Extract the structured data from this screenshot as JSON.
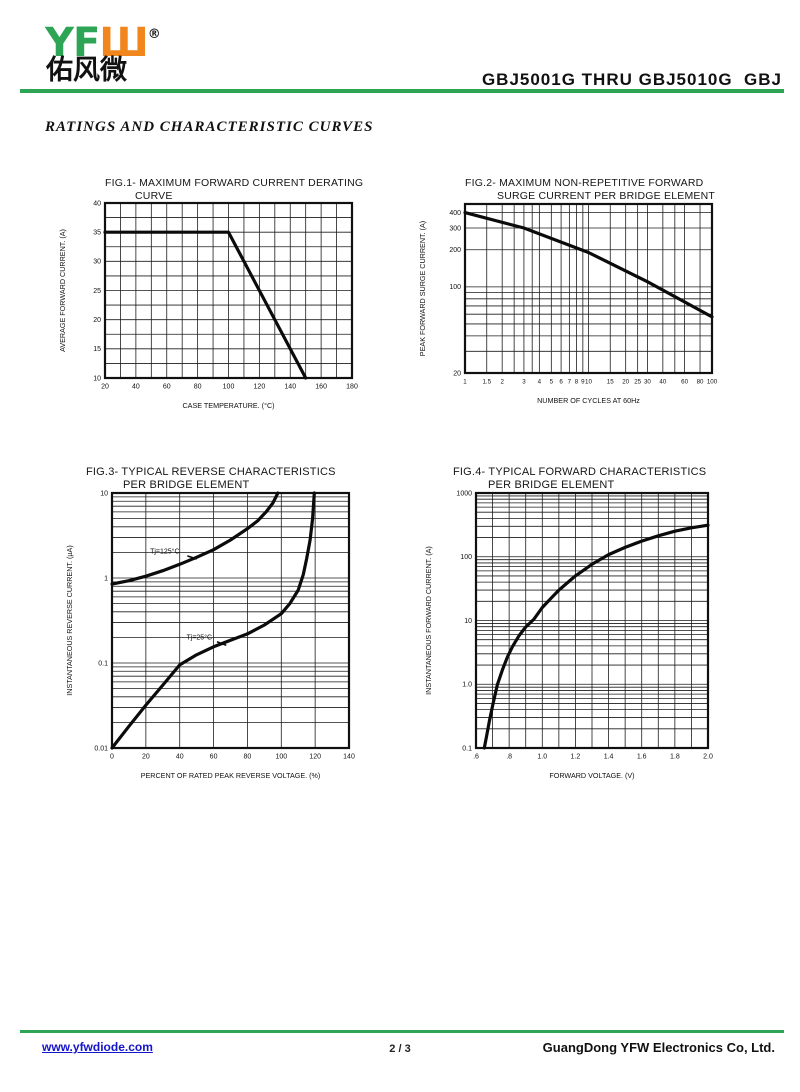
{
  "header": {
    "logo": {
      "yf": "YF",
      "mark": "Ш",
      "registered": "®",
      "chinese": "佑风微"
    },
    "doc_title": "GBJ5001G THRU GBJ5010G  GBJ"
  },
  "section_heading": "RATINGS AND CHARACTERISTIC CURVES",
  "footer": {
    "website": "www.yfwdiode.com",
    "page": "2 / 3",
    "company": "GuangDong YFW Electronics Co, Ltd."
  },
  "colors": {
    "brand_green": "#2ea455",
    "brand_orange": "#f0861c",
    "link_blue": "#1414cc",
    "ink": "#111111"
  },
  "chart_data": [
    {
      "type": "line",
      "title": "FIG.1- MAXIMUM FORWARD CURRENT DERATING",
      "title_line2": "CURVE",
      "xlabel": "CASE TEMPERATURE. (°C)",
      "ylabel": "AVERAGE FORWARD CURRENT. (A)",
      "x": {
        "scale": "linear",
        "min": 20,
        "max": 180,
        "grid": [
          30,
          40,
          50,
          60,
          70,
          80,
          90,
          100,
          110,
          120,
          130,
          140,
          150,
          160,
          170
        ],
        "ticks": [
          {
            "v": 20,
            "l": "20"
          },
          {
            "v": 40,
            "l": "40"
          },
          {
            "v": 60,
            "l": "60"
          },
          {
            "v": 80,
            "l": "80"
          },
          {
            "v": 100,
            "l": "100"
          },
          {
            "v": 120,
            "l": "120"
          },
          {
            "v": 140,
            "l": "140"
          },
          {
            "v": 160,
            "l": "160"
          },
          {
            "v": 180,
            "l": "180"
          }
        ]
      },
      "y": {
        "scale": "linear",
        "min": 10,
        "max": 40,
        "grid": [
          12.5,
          15,
          17.5,
          20,
          22.5,
          25,
          27.5,
          30,
          32.5,
          35,
          37.5
        ],
        "ticks": [
          {
            "v": 40,
            "l": "40"
          },
          {
            "v": 35,
            "l": "35"
          },
          {
            "v": 30,
            "l": "30"
          },
          {
            "v": 25,
            "l": "25"
          },
          {
            "v": 20,
            "l": "20"
          },
          {
            "v": 15,
            "l": "15"
          },
          {
            "v": 10,
            "l": "10"
          }
        ]
      },
      "series": [
        {
          "name": "max-average-forward-current",
          "points": [
            [
              20,
              35
            ],
            [
              100,
              35
            ],
            [
              150,
              10
            ]
          ]
        }
      ],
      "annotations": []
    },
    {
      "type": "line",
      "title": "FIG.2- MAXIMUM NON-REPETITIVE FORWARD",
      "title_line2": "SURGE CURRENT PER BRIDGE ELEMENT",
      "xlabel": "NUMBER OF CYCLES AT 60Hz",
      "ylabel": "PEAK FORWARD SURGE CURRENT. (A)",
      "x": {
        "scale": "log",
        "min": 1,
        "max": 100,
        "tick_fs": 6.2,
        "grid": [
          1.5,
          2,
          2.5,
          3,
          3.5,
          4,
          5,
          6,
          7,
          8,
          9,
          10,
          15,
          20,
          25,
          30,
          40,
          50,
          60,
          80
        ],
        "ticks": [
          {
            "v": 1,
            "l": "1"
          },
          {
            "v": 1.5,
            "l": "1.5"
          },
          {
            "v": 2,
            "l": "2"
          },
          {
            "v": 3,
            "l": "3"
          },
          {
            "v": 4,
            "l": "4"
          },
          {
            "v": 5,
            "l": "5"
          },
          {
            "v": 6,
            "l": "6"
          },
          {
            "v": 7,
            "l": "7"
          },
          {
            "v": 8,
            "l": "8"
          },
          {
            "v": 9,
            "l": "9"
          },
          {
            "v": 10,
            "l": "10"
          },
          {
            "v": 15,
            "l": "15"
          },
          {
            "v": 20,
            "l": "20"
          },
          {
            "v": 25,
            "l": "25"
          },
          {
            "v": 30,
            "l": "30"
          },
          {
            "v": 40,
            "l": "40"
          },
          {
            "v": 60,
            "l": "60"
          },
          {
            "v": 80,
            "l": "80"
          },
          {
            "v": 100,
            "l": "100"
          }
        ]
      },
      "y": {
        "scale": "log",
        "min": 20,
        "max": 470,
        "grid": [
          30,
          40,
          50,
          60,
          70,
          80,
          90,
          100,
          200,
          300,
          400
        ],
        "ticks": [
          {
            "v": 400,
            "l": "400"
          },
          {
            "v": 300,
            "l": "300"
          },
          {
            "v": 200,
            "l": "200"
          },
          {
            "v": 100,
            "l": "100"
          },
          {
            "v": 20,
            "l": "20"
          }
        ]
      },
      "series": [
        {
          "name": "peak-surge-current",
          "points": [
            [
              1,
              400
            ],
            [
              3,
              300
            ],
            [
              10,
              190
            ],
            [
              30,
              110
            ],
            [
              100,
              57
            ]
          ]
        }
      ],
      "annotations": []
    },
    {
      "type": "line",
      "title": "FIG.3- TYPICAL REVERSE CHARACTERISTICS",
      "title_line2": "PER BRIDGE ELEMENT",
      "xlabel": "PERCENT OF RATED PEAK REVERSE VOLTAGE. (%)",
      "ylabel": "INSTANTANEOUS REVERSE CURRENT. (µA)",
      "x": {
        "scale": "linear",
        "min": 0,
        "max": 140,
        "grid": [
          20,
          40,
          60,
          80,
          100,
          120
        ],
        "ticks": [
          {
            "v": 0,
            "l": "0"
          },
          {
            "v": 20,
            "l": "20"
          },
          {
            "v": 40,
            "l": "40"
          },
          {
            "v": 60,
            "l": "60"
          },
          {
            "v": 80,
            "l": "80"
          },
          {
            "v": 100,
            "l": "100"
          },
          {
            "v": 120,
            "l": "120"
          },
          {
            "v": 140,
            "l": "140"
          }
        ]
      },
      "y": {
        "scale": "log",
        "min": 0.01,
        "max": 10,
        "grid": [
          0.02,
          0.03,
          0.04,
          0.05,
          0.06,
          0.07,
          0.08,
          0.09,
          0.1,
          0.2,
          0.3,
          0.4,
          0.5,
          0.6,
          0.7,
          0.8,
          0.9,
          1,
          2,
          3,
          4,
          5,
          6,
          7,
          8,
          9
        ],
        "ticks": [
          {
            "v": 10,
            "l": "10"
          },
          {
            "v": 1,
            "l": "1"
          },
          {
            "v": 0.1,
            "l": "0.1"
          },
          {
            "v": 0.01,
            "l": "0.01"
          }
        ]
      },
      "series": [
        {
          "name": "Tj=125C",
          "points": [
            [
              0,
              0.85
            ],
            [
              10,
              0.93
            ],
            [
              20,
              1.05
            ],
            [
              30,
              1.22
            ],
            [
              40,
              1.45
            ],
            [
              50,
              1.75
            ],
            [
              60,
              2.15
            ],
            [
              70,
              2.8
            ],
            [
              80,
              3.8
            ],
            [
              86,
              4.7
            ],
            [
              91,
              6.0
            ],
            [
              95,
              7.6
            ],
            [
              98,
              10
            ]
          ]
        },
        {
          "name": "Tj=25C",
          "points": [
            [
              0,
              0.01
            ],
            [
              10,
              0.018
            ],
            [
              20,
              0.032
            ],
            [
              30,
              0.055
            ],
            [
              40,
              0.095
            ],
            [
              50,
              0.125
            ],
            [
              60,
              0.155
            ],
            [
              70,
              0.185
            ],
            [
              80,
              0.22
            ],
            [
              90,
              0.28
            ],
            [
              100,
              0.38
            ],
            [
              105,
              0.5
            ],
            [
              110,
              0.72
            ],
            [
              113,
              1.1
            ],
            [
              115,
              1.7
            ],
            [
              117,
              2.8
            ],
            [
              118.5,
              5
            ],
            [
              119.5,
              10
            ]
          ]
        }
      ],
      "annotations": [
        {
          "text": "Tj=125°C",
          "x": 22.5,
          "y": 1.95,
          "anchor": "start",
          "leader": [
            44.5,
            1.82,
            50,
            1.67
          ]
        },
        {
          "text": "Tj=25°C",
          "x": 44,
          "y": 0.19,
          "anchor": "start",
          "leader": [
            62,
            0.178,
            67.5,
            0.162
          ]
        }
      ]
    },
    {
      "type": "line",
      "title": "FIG.4- TYPICAL FORWARD CHARACTERISTICS",
      "title_line2": "PER BRIDGE ELEMENT",
      "xlabel": "FORWARD VOLTAGE. (V)",
      "ylabel": "INSTANTANEOUS FORWARD CURRENT. (A)",
      "x": {
        "scale": "linear",
        "min": 0.6,
        "max": 2.0,
        "grid": [
          0.7,
          0.8,
          0.9,
          1.0,
          1.1,
          1.2,
          1.3,
          1.4,
          1.5,
          1.6,
          1.7,
          1.8,
          1.9
        ],
        "ticks": [
          {
            "v": 0.6,
            "l": ".6"
          },
          {
            "v": 0.8,
            "l": ".8"
          },
          {
            "v": 1.0,
            "l": "1.0"
          },
          {
            "v": 1.2,
            "l": "1.2"
          },
          {
            "v": 1.4,
            "l": "1.4"
          },
          {
            "v": 1.6,
            "l": "1.6"
          },
          {
            "v": 1.8,
            "l": "1.8"
          },
          {
            "v": 2.0,
            "l": "2.0"
          }
        ]
      },
      "y": {
        "scale": "log",
        "min": 0.1,
        "max": 1000,
        "grid": [
          0.2,
          0.3,
          0.4,
          0.5,
          0.6,
          0.7,
          0.8,
          0.9,
          1,
          2,
          3,
          4,
          5,
          6,
          7,
          8,
          9,
          10,
          20,
          30,
          40,
          50,
          60,
          70,
          80,
          90,
          100,
          200,
          300,
          400,
          500,
          600,
          700,
          800,
          900
        ],
        "ticks": [
          {
            "v": 1000,
            "l": "1000"
          },
          {
            "v": 100,
            "l": "100"
          },
          {
            "v": 10,
            "l": "10"
          },
          {
            "v": 1,
            "l": "1.0"
          },
          {
            "v": 0.1,
            "l": "0.1"
          }
        ]
      },
      "series": [
        {
          "name": "forward-current",
          "points": [
            [
              0.65,
              0.1
            ],
            [
              0.665,
              0.16
            ],
            [
              0.68,
              0.26
            ],
            [
              0.7,
              0.46
            ],
            [
              0.72,
              0.78
            ],
            [
              0.73,
              1.0
            ],
            [
              0.76,
              1.7
            ],
            [
              0.79,
              2.7
            ],
            [
              0.82,
              3.9
            ],
            [
              0.86,
              5.8
            ],
            [
              0.9,
              7.9
            ],
            [
              0.95,
              10.5
            ],
            [
              1.0,
              16
            ],
            [
              1.05,
              22
            ],
            [
              1.1,
              30
            ],
            [
              1.2,
              50
            ],
            [
              1.3,
              76
            ],
            [
              1.4,
              108
            ],
            [
              1.5,
              140
            ],
            [
              1.6,
              176
            ],
            [
              1.7,
              213
            ],
            [
              1.8,
              252
            ],
            [
              1.9,
              285
            ],
            [
              2.0,
              312
            ]
          ]
        }
      ],
      "annotations": []
    }
  ]
}
